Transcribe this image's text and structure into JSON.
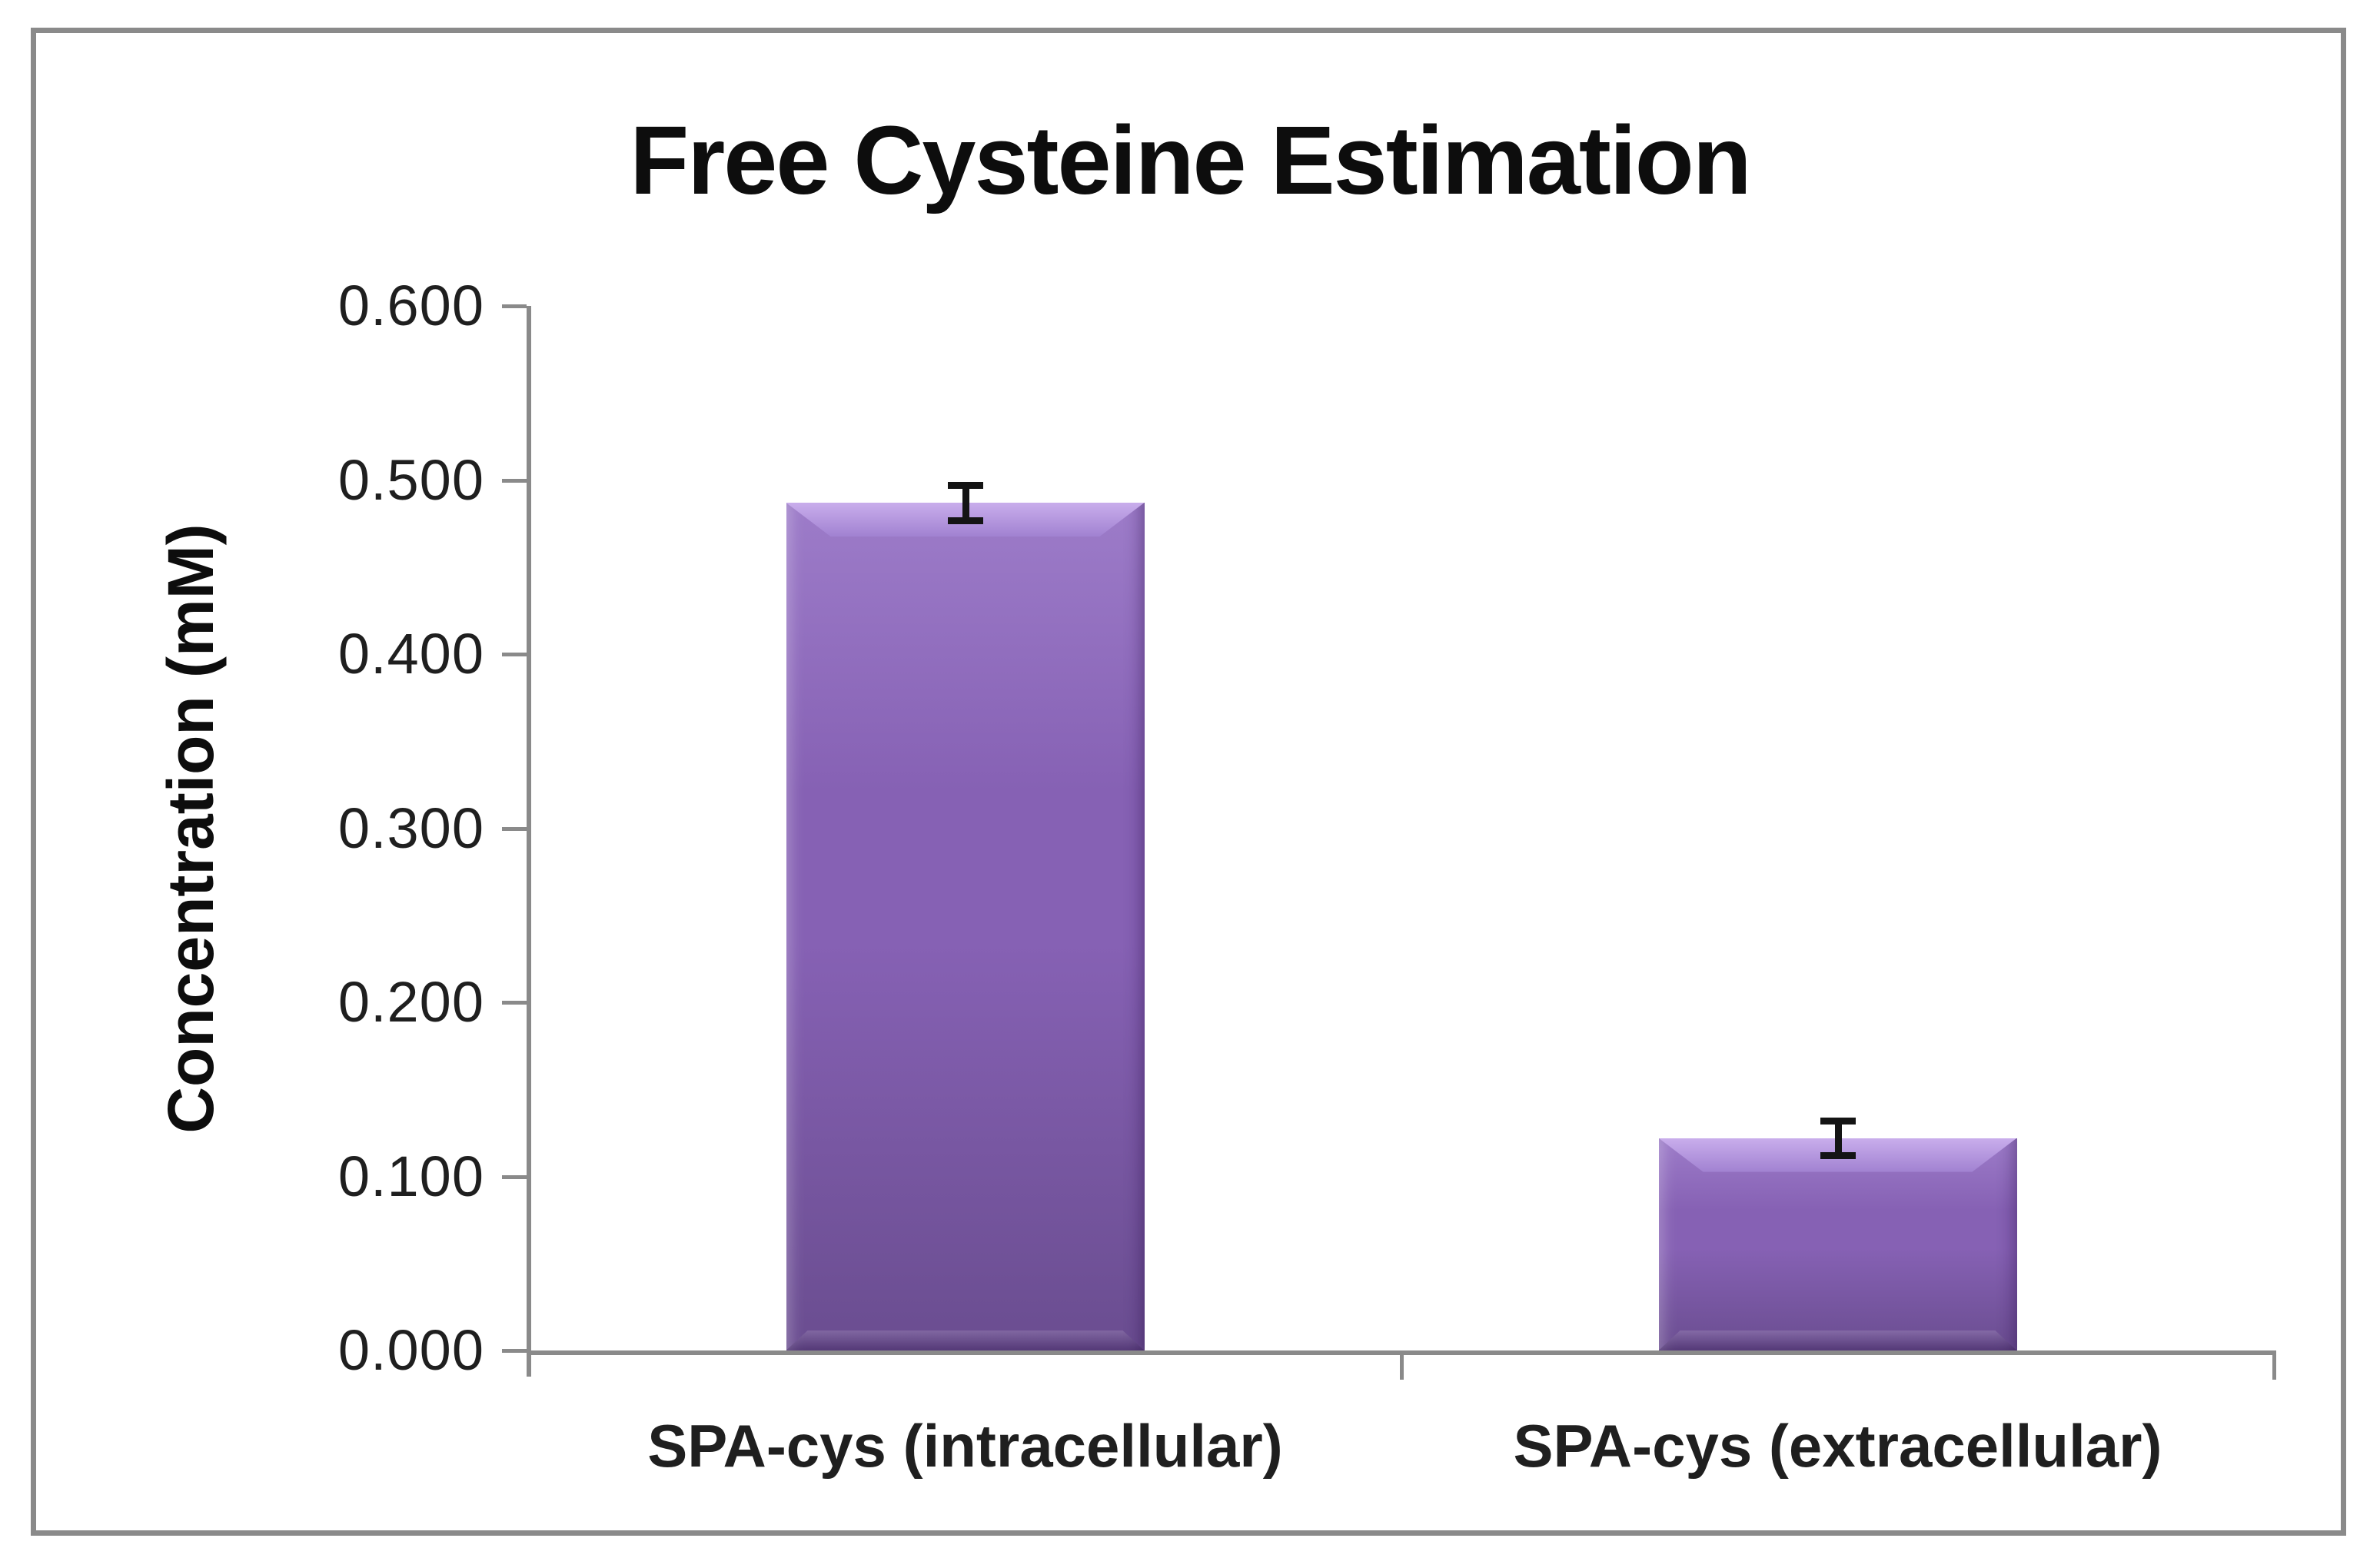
{
  "chart_data": {
    "type": "bar",
    "title": "Free Cysteine Estimation",
    "ylabel": "Concentration (mM)",
    "xlabel": "",
    "categories": [
      "SPA-cys (intracellular)",
      "SPA-cys (extracellular)"
    ],
    "values": [
      0.487,
      0.122
    ],
    "error_bars_plus_minus": [
      0.01,
      0.01
    ],
    "ylim": [
      0.0,
      0.6
    ],
    "ytick_step": 0.1,
    "ytick_labels": [
      "0.000",
      "0.100",
      "0.200",
      "0.300",
      "0.400",
      "0.500",
      "0.600"
    ],
    "grid": false,
    "legend": "none",
    "bar_fill_style": "purple vertical gradient with 3D beveled edges",
    "error_bar_style": "black capped I-beam at bar tops"
  },
  "colors": {
    "background": "#ffffff",
    "frame_gray": "#8a8a8a",
    "axis_gray": "#8a8a8a",
    "text_dark": "#1f1f1f",
    "title_black": "#0d0d0d",
    "error_bar": "#141414",
    "bar_body_light": "#9d7cc9",
    "bar_body_mid": "#8661b4",
    "bar_body_dark": "#6a4d90",
    "bar_top_highlight": "#c9aeec",
    "bar_top_highlight_deep": "#a182d1"
  }
}
